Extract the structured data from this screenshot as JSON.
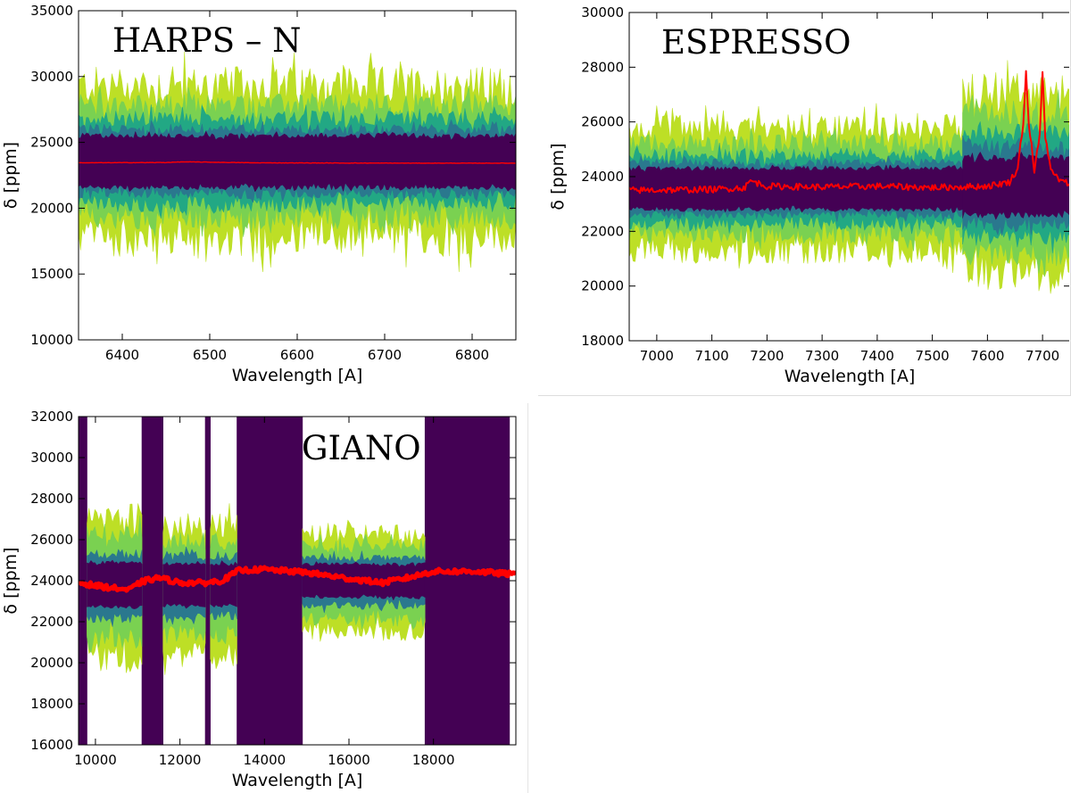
{
  "colors": {
    "dark": "#440154",
    "teal": "#2a788e",
    "mid": "#22a884",
    "lightgreen": "#7ad151",
    "yellow": "#bddf26",
    "model": "#ff0000"
  },
  "chart_data": [
    {
      "id": "harps",
      "type": "line",
      "title": "HARPS – N",
      "xlabel": "Wavelength [A]",
      "ylabel": "δ [ppm]",
      "xlim": [
        6350,
        6850
      ],
      "ylim": [
        10000,
        35000
      ],
      "xticks": [
        6400,
        6500,
        6600,
        6700,
        6800
      ],
      "yticks": [
        10000,
        15000,
        20000,
        25000,
        30000,
        35000
      ],
      "series": [
        {
          "name": "model",
          "x": [
            6350,
            6450,
            6470,
            6550,
            6650,
            6750,
            6850
          ],
          "y": [
            23450,
            23470,
            23520,
            23450,
            23430,
            23420,
            23420
          ]
        }
      ],
      "bands": [
        {
          "level": "yellow",
          "segments": [
            {
              "x0": 6350,
              "x1": 6850,
              "lo": 17800,
              "hi": 29300,
              "noise": 1500
            }
          ]
        },
        {
          "level": "lightgreen",
          "segments": [
            {
              "x0": 6350,
              "x1": 6850,
              "lo": 19300,
              "hi": 27800,
              "noise": 900
            }
          ]
        },
        {
          "level": "mid",
          "segments": [
            {
              "x0": 6350,
              "x1": 6850,
              "lo": 20300,
              "hi": 26800,
              "noise": 600
            }
          ]
        },
        {
          "level": "teal",
          "segments": [
            {
              "x0": 6350,
              "x1": 6850,
              "lo": 21100,
              "hi": 26000,
              "noise": 400
            }
          ]
        },
        {
          "level": "dark",
          "segments": [
            {
              "x0": 6350,
              "x1": 6850,
              "lo": 21600,
              "hi": 25500,
              "noise": 200
            }
          ]
        }
      ]
    },
    {
      "id": "espresso",
      "type": "line",
      "title": "ESPRESSO",
      "xlabel": "Wavelength [A]",
      "ylabel": "δ [ppm]",
      "xlim": [
        6950,
        7750
      ],
      "ylim": [
        18000,
        30000
      ],
      "xticks": [
        7000,
        7100,
        7200,
        7300,
        7400,
        7500,
        7600,
        7700
      ],
      "yticks": [
        18000,
        20000,
        22000,
        24000,
        26000,
        28000,
        30000
      ],
      "series": [
        {
          "name": "model",
          "x": [
            6950,
            7100,
            7160,
            7170,
            7200,
            7300,
            7400,
            7500,
            7600,
            7640,
            7655,
            7665,
            7670,
            7675,
            7685,
            7695,
            7700,
            7705,
            7715,
            7735,
            7750
          ],
          "y": [
            23500,
            23530,
            23600,
            23850,
            23650,
            23620,
            23650,
            23600,
            23650,
            23800,
            24300,
            26000,
            27800,
            26000,
            24200,
            25500,
            27800,
            25500,
            24200,
            23800,
            23750
          ]
        }
      ],
      "bands": [
        {
          "level": "yellow",
          "segments": [
            {
              "x0": 6950,
              "x1": 7555,
              "lo": 21300,
              "hi": 25800,
              "noise": 500
            },
            {
              "x0": 7555,
              "x1": 7750,
              "lo": 20500,
              "hi": 27100,
              "noise": 700
            }
          ]
        },
        {
          "level": "lightgreen",
          "segments": [
            {
              "x0": 6950,
              "x1": 7555,
              "lo": 21900,
              "hi": 25200,
              "noise": 350
            },
            {
              "x0": 7555,
              "x1": 7750,
              "lo": 21200,
              "hi": 26300,
              "noise": 500
            }
          ]
        },
        {
          "level": "mid",
          "segments": [
            {
              "x0": 6950,
              "x1": 7555,
              "lo": 22300,
              "hi": 24800,
              "noise": 250
            },
            {
              "x0": 7555,
              "x1": 7750,
              "lo": 21800,
              "hi": 25600,
              "noise": 350
            }
          ]
        },
        {
          "level": "teal",
          "segments": [
            {
              "x0": 6950,
              "x1": 7555,
              "lo": 22600,
              "hi": 24500,
              "noise": 150
            },
            {
              "x0": 7555,
              "x1": 7750,
              "lo": 22300,
              "hi": 25100,
              "noise": 250
            }
          ]
        },
        {
          "level": "dark",
          "segments": [
            {
              "x0": 6950,
              "x1": 7555,
              "lo": 22800,
              "hi": 24300,
              "noise": 80
            },
            {
              "x0": 7555,
              "x1": 7750,
              "lo": 22600,
              "hi": 24700,
              "noise": 120
            }
          ]
        }
      ]
    },
    {
      "id": "giano",
      "type": "line",
      "title": "GIANO",
      "xlabel": "Wavelength [A]",
      "ylabel": "δ [ppm]",
      "xlim": [
        9600,
        19950
      ],
      "ylim": [
        16000,
        32000
      ],
      "xticks": [
        10000,
        12000,
        14000,
        16000,
        18000
      ],
      "yticks": [
        16000,
        18000,
        20000,
        22000,
        24000,
        26000,
        28000,
        30000,
        32000
      ],
      "series": [
        {
          "name": "model",
          "x": [
            9600,
            10200,
            10800,
            11100,
            11500,
            12000,
            12600,
            13000,
            13400,
            14000,
            15000,
            16000,
            16800,
            17400,
            18000,
            19000,
            19950
          ],
          "y": [
            23900,
            23700,
            23550,
            23950,
            24150,
            23900,
            23900,
            24000,
            24500,
            24550,
            24400,
            24100,
            23900,
            24150,
            24450,
            24450,
            24300
          ]
        }
      ],
      "bands": [
        {
          "level": "dark",
          "segments": [
            {
              "x0": 9600,
              "x1": 9800,
              "lo": 16000,
              "hi": 32000,
              "noise": 0
            },
            {
              "x0": 11100,
              "x1": 11600,
              "lo": 16000,
              "hi": 32000,
              "noise": 0
            },
            {
              "x0": 12600,
              "x1": 12720,
              "lo": 16000,
              "hi": 32000,
              "noise": 0
            },
            {
              "x0": 13350,
              "x1": 14900,
              "lo": 16000,
              "hi": 32000,
              "noise": 0
            },
            {
              "x0": 17800,
              "x1": 19800,
              "lo": 16000,
              "hi": 32000,
              "noise": 0
            }
          ]
        },
        {
          "level": "yellow",
          "segments": [
            {
              "x0": 9800,
              "x1": 11100,
              "lo": 20200,
              "hi": 27300,
              "noise": 700
            },
            {
              "x0": 11600,
              "x1": 12600,
              "lo": 20400,
              "hi": 26700,
              "noise": 600
            },
            {
              "x0": 12720,
              "x1": 13350,
              "lo": 20300,
              "hi": 26700,
              "noise": 600
            },
            {
              "x0": 14900,
              "x1": 17800,
              "lo": 21500,
              "hi": 26300,
              "noise": 500
            }
          ]
        },
        {
          "level": "lightgreen",
          "segments": [
            {
              "x0": 9800,
              "x1": 11100,
              "lo": 21200,
              "hi": 26300,
              "noise": 500
            },
            {
              "x0": 11600,
              "x1": 12600,
              "lo": 21400,
              "hi": 25900,
              "noise": 450
            },
            {
              "x0": 12720,
              "x1": 13350,
              "lo": 21300,
              "hi": 25900,
              "noise": 450
            },
            {
              "x0": 14900,
              "x1": 17800,
              "lo": 22100,
              "hi": 25700,
              "noise": 350
            }
          ]
        },
        {
          "level": "teal",
          "segments": [
            {
              "x0": 9800,
              "x1": 11100,
              "lo": 22200,
              "hi": 25300,
              "noise": 250
            },
            {
              "x0": 11600,
              "x1": 12600,
              "lo": 22300,
              "hi": 25200,
              "noise": 250
            },
            {
              "x0": 12720,
              "x1": 13350,
              "lo": 22300,
              "hi": 25200,
              "noise": 250
            },
            {
              "x0": 14900,
              "x1": 17800,
              "lo": 22800,
              "hi": 25100,
              "noise": 200
            }
          ]
        },
        {
          "level": "dark",
          "segments": [
            {
              "x0": 9800,
              "x1": 11100,
              "lo": 22700,
              "hi": 24900,
              "noise": 100
            },
            {
              "x0": 11600,
              "x1": 12600,
              "lo": 22800,
              "hi": 24800,
              "noise": 100
            },
            {
              "x0": 12720,
              "x1": 13350,
              "lo": 22800,
              "hi": 24800,
              "noise": 100
            },
            {
              "x0": 14900,
              "x1": 17800,
              "lo": 23200,
              "hi": 24800,
              "noise": 80
            }
          ]
        }
      ]
    }
  ]
}
